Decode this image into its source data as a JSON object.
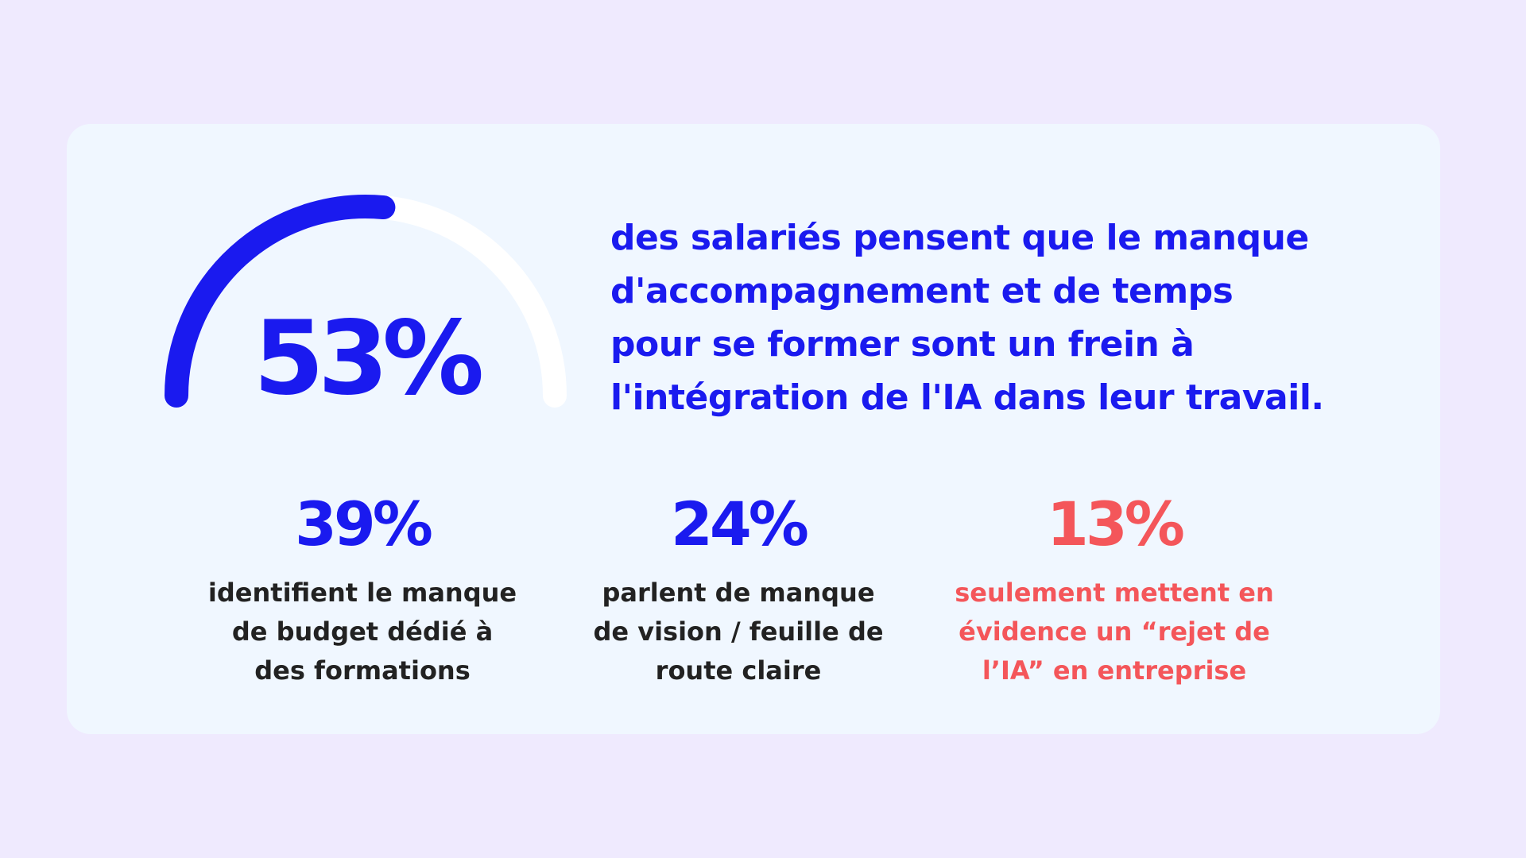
{
  "gauge": {
    "value": "53%",
    "fraction": 0.53,
    "fill_color": "#1a1aef",
    "track_color": "#ffffff"
  },
  "headline": {
    "lines": [
      "des salariés pensent que le manque",
      "d'accompagnement et de temps",
      "pour se former sont un frein à",
      "l'intégration de l'IA dans leur travail."
    ]
  },
  "stats": [
    {
      "value": "39%",
      "lines": [
        "identifient le manque",
        "de budget dédié à",
        "des formations"
      ]
    },
    {
      "value": "24%",
      "lines": [
        "parlent de manque",
        "de vision / feuille de",
        "route claire"
      ]
    },
    {
      "value": "13%",
      "lines": [
        "seulement mettent en",
        "évidence un “rejet de",
        "l’IA” en entreprise"
      ]
    }
  ],
  "colors": {
    "page_background": "#efeafe",
    "card_background": "#f0f7ff",
    "accent_blue": "#1a1aef",
    "accent_red": "#f4565a",
    "text_dark": "#222222"
  }
}
